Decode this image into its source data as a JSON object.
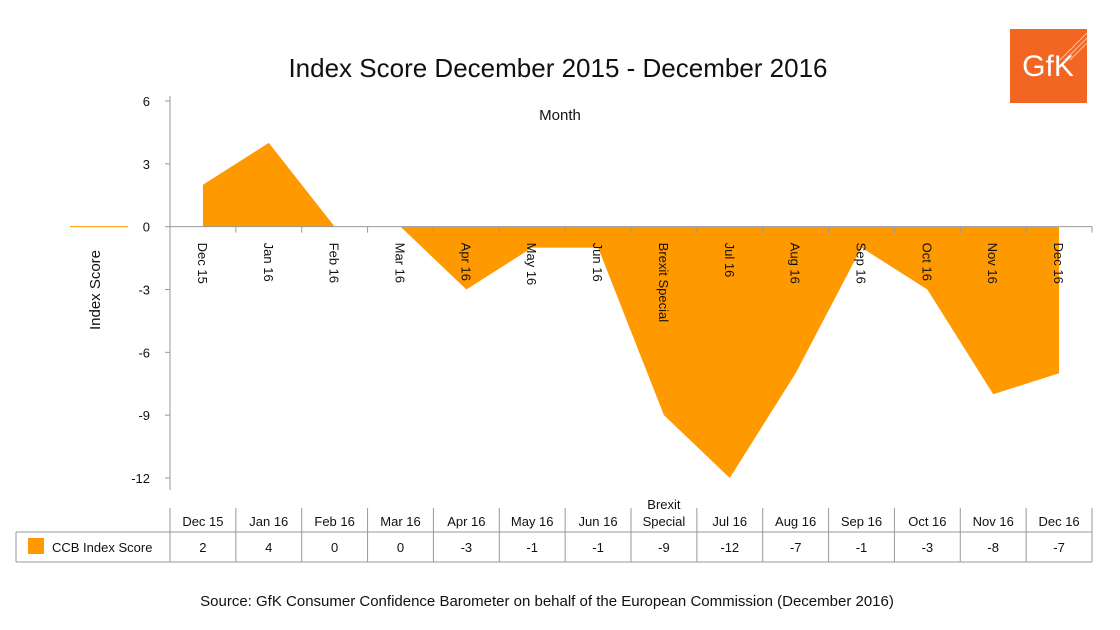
{
  "chart_data": {
    "type": "area",
    "title": "Index Score December 2015 - December 2016",
    "xlabel": "Month",
    "ylabel": "Index Score",
    "categories": [
      "Dec 15",
      "Jan 16",
      "Feb 16",
      "Mar 16",
      "Apr 16",
      "May 16",
      "Jun 16",
      "Brexit Special",
      "Jul 16",
      "Aug 16",
      "Sep 16",
      "Oct 16",
      "Nov 16",
      "Dec 16"
    ],
    "table_categories": [
      "Dec 15",
      "Jan 16",
      "Feb 16",
      "Mar 16",
      "Apr 16",
      "May 16",
      "Jun 16",
      "Brexit\nSpecial",
      "Jul 16",
      "Aug 16",
      "Sep 16",
      "Oct 16",
      "Nov 16",
      "Dec 16"
    ],
    "series": [
      {
        "name": "CCB Index Score",
        "values": [
          2,
          4,
          0,
          0,
          -3,
          -1,
          -1,
          -9,
          -12,
          -7,
          -1,
          -3,
          -8,
          -7
        ],
        "color": "#ff9900"
      }
    ],
    "ylim": [
      -12,
      6
    ],
    "yticks": [
      "6",
      "3",
      "0",
      "-3",
      "-6",
      "-9",
      "-12"
    ],
    "table_values": [
      "2",
      "4",
      "0",
      "0",
      "-3",
      "-1",
      "-1",
      "-9",
      "-12",
      "-7",
      "-1",
      "-3",
      "-8",
      "-7"
    ],
    "grid": false,
    "legend": "data-table"
  },
  "source": "Source: GfK Consumer Confidence Barometer on behalf of the European Commission (December 2016)",
  "logo": {
    "text": "GfK",
    "color": "#f26522"
  }
}
